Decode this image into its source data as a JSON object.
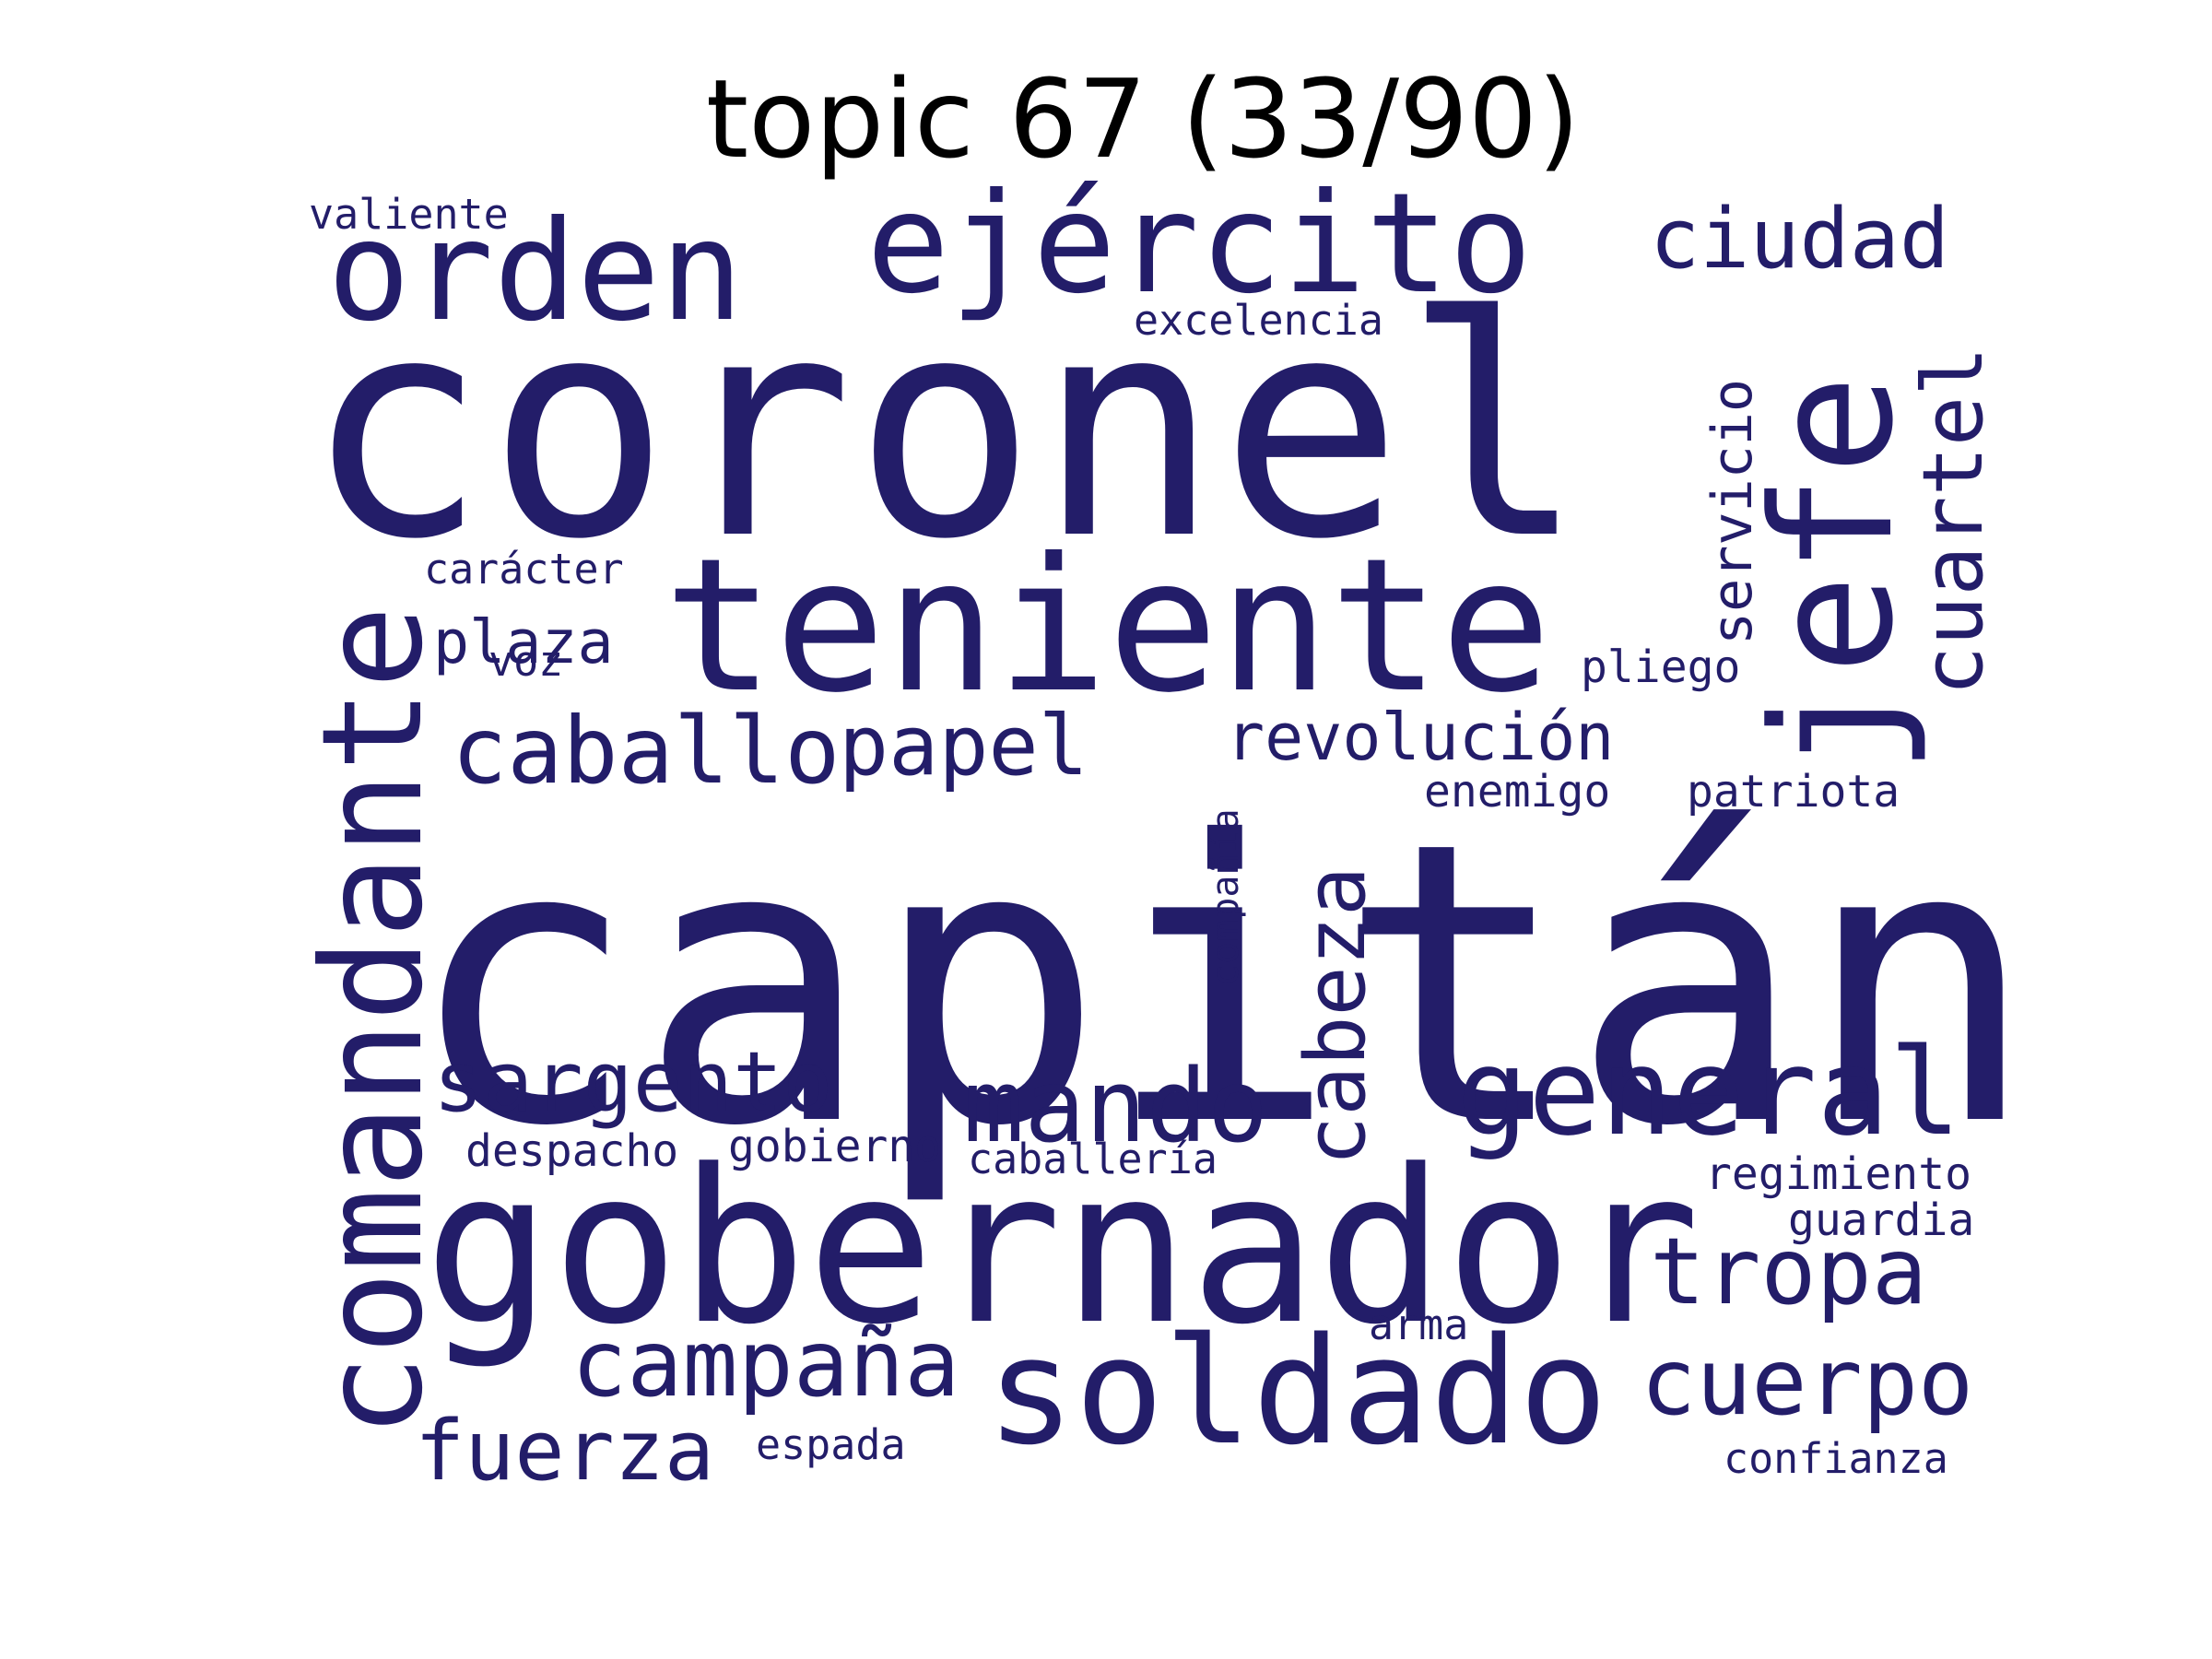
{
  "title": "topic 67 (33/90)",
  "colors": {
    "word": "#231d69",
    "title": "#000000",
    "background": "#ffffff"
  },
  "words": [
    {
      "text": "capitán",
      "vertical": false
    },
    {
      "text": "coronel",
      "vertical": false
    },
    {
      "text": "gobernador",
      "vertical": false
    },
    {
      "text": "teniente",
      "vertical": false
    },
    {
      "text": "comandante",
      "vertical": true
    },
    {
      "text": "jefe",
      "vertical": true
    },
    {
      "text": "soldado",
      "vertical": false
    },
    {
      "text": "ejército",
      "vertical": false
    },
    {
      "text": "orden",
      "vertical": false
    },
    {
      "text": "general",
      "vertical": false
    },
    {
      "text": "mando",
      "vertical": false
    },
    {
      "text": "tropa",
      "vertical": false
    },
    {
      "text": "cuerpo",
      "vertical": false
    },
    {
      "text": "campaña",
      "vertical": false
    },
    {
      "text": "cabeza",
      "vertical": true
    },
    {
      "text": "cuartel",
      "vertical": true
    },
    {
      "text": "caballo",
      "vertical": false
    },
    {
      "text": "sargento",
      "vertical": false
    },
    {
      "text": "fuerza",
      "vertical": false
    },
    {
      "text": "ciudad",
      "vertical": false
    },
    {
      "text": "papel",
      "vertical": false
    },
    {
      "text": "revolución",
      "vertical": false
    },
    {
      "text": "servicio",
      "vertical": true
    },
    {
      "text": "plaza",
      "vertical": false
    },
    {
      "text": "compañía",
      "vertical": true
    },
    {
      "text": "patriota",
      "vertical": false
    },
    {
      "text": "enemigo",
      "vertical": false
    },
    {
      "text": "pliego",
      "vertical": false
    },
    {
      "text": "regimiento",
      "vertical": false
    },
    {
      "text": "guardia",
      "vertical": false
    },
    {
      "text": "confianza",
      "vertical": false
    },
    {
      "text": "excelencia",
      "vertical": false
    },
    {
      "text": "despacho",
      "vertical": false
    },
    {
      "text": "gobierno",
      "vertical": false
    },
    {
      "text": "caballería",
      "vertical": false
    },
    {
      "text": "carácter",
      "vertical": false
    },
    {
      "text": "valiente",
      "vertical": false
    },
    {
      "text": "voz",
      "vertical": false
    },
    {
      "text": "espada",
      "vertical": false
    },
    {
      "text": "arma",
      "vertical": false
    }
  ]
}
